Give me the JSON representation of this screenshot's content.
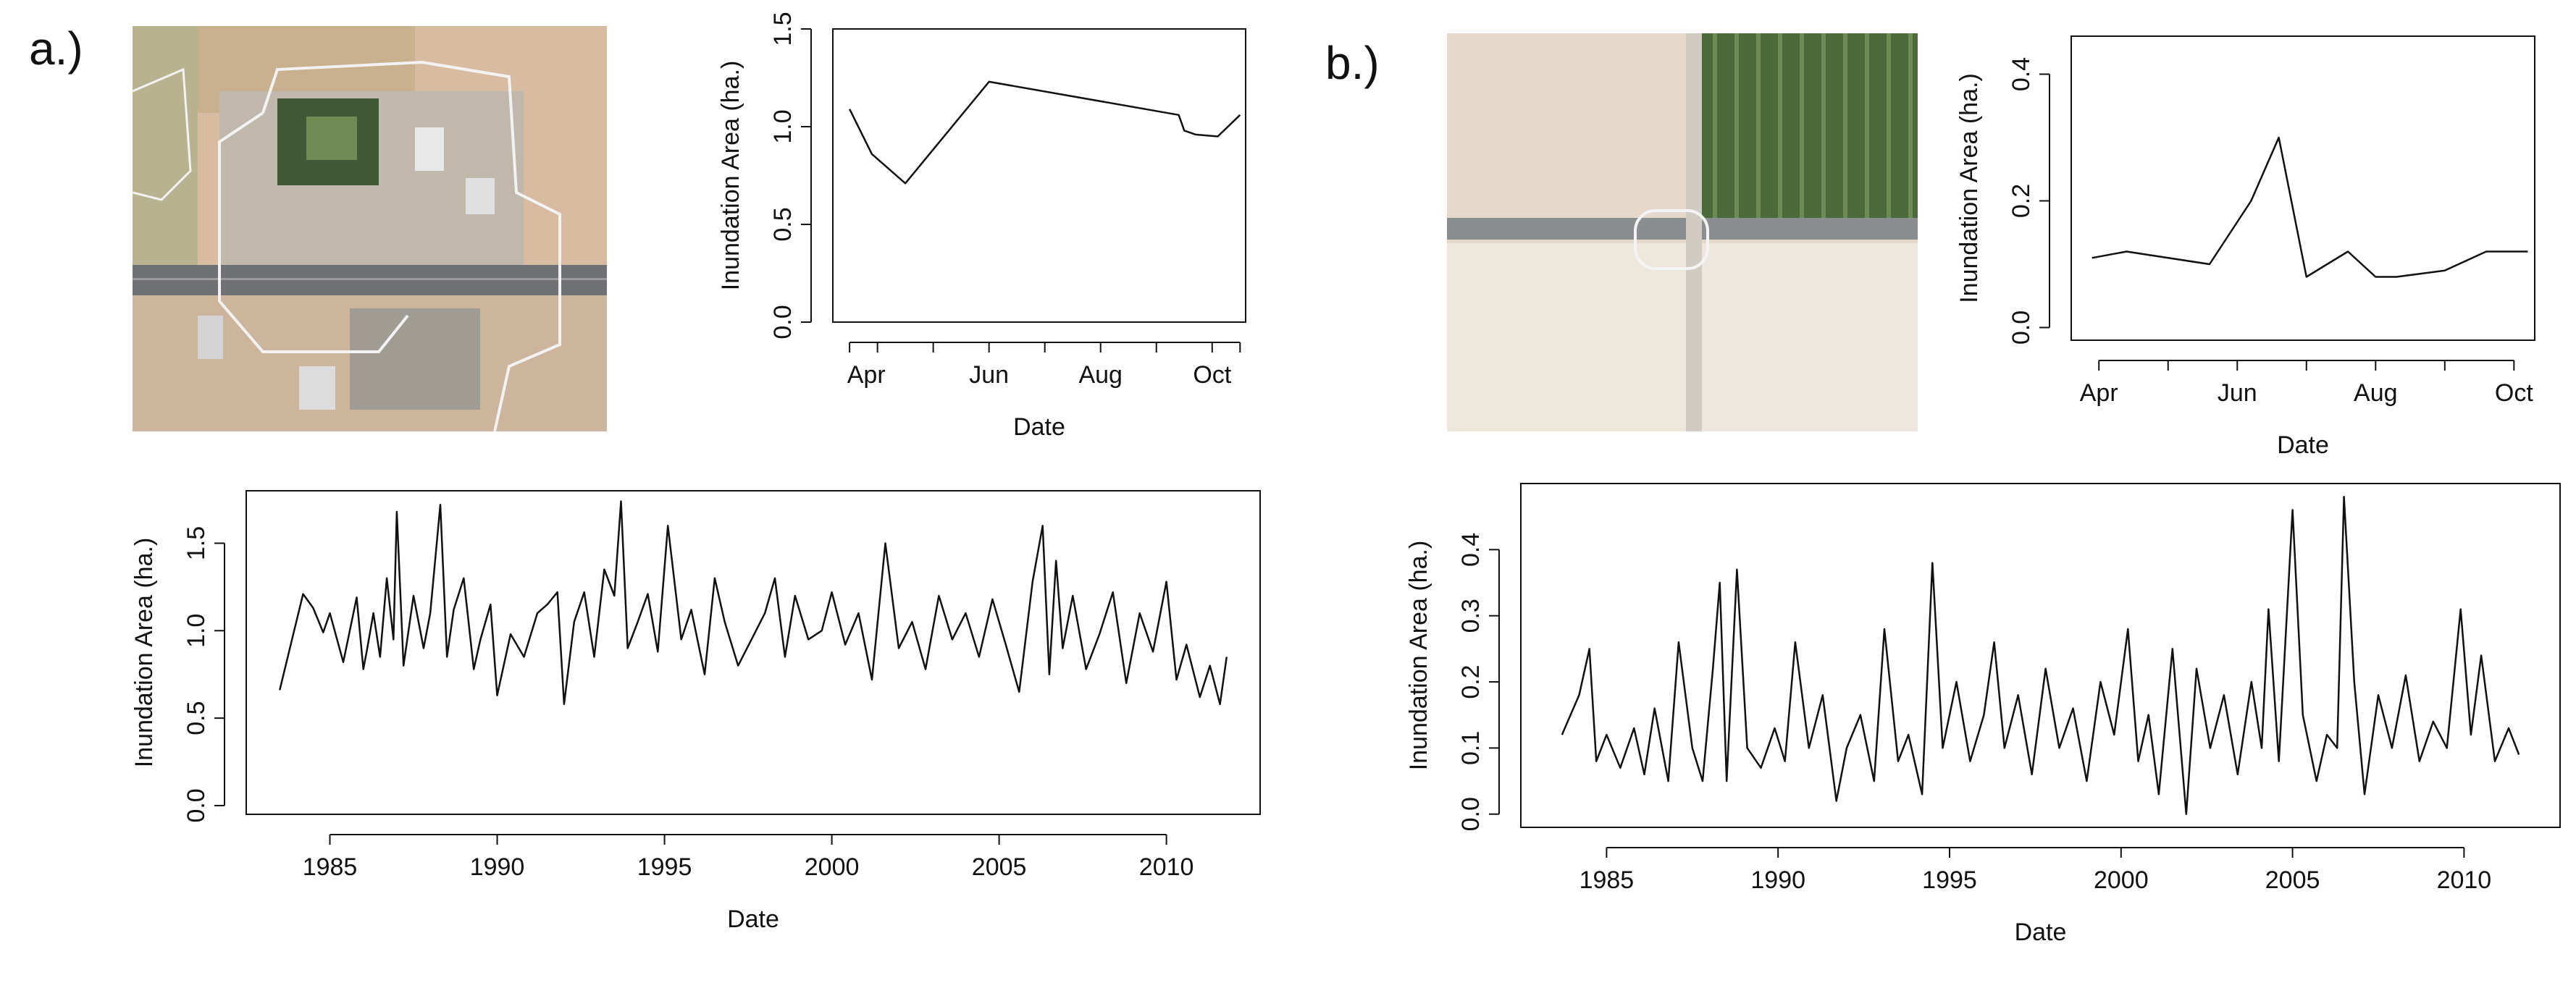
{
  "panels": {
    "a": {
      "label": "a.)"
    },
    "b": {
      "label": "b.)"
    }
  },
  "colors": {
    "line": "#111111",
    "axis": "#111111",
    "field": "#d9bfa5",
    "route": "#f2f2f2"
  },
  "chart_data": [
    {
      "id": "a-seasonal",
      "type": "line",
      "panel": "a.)",
      "title": "",
      "xlabel": "Date",
      "ylabel": "Inundation Area (ha.)",
      "xlim": [
        3.2,
        10.6
      ],
      "ylim": [
        0,
        1.5
      ],
      "x_ticks": [
        3.5,
        4,
        5,
        6,
        7,
        8,
        9,
        10,
        10.5
      ],
      "x_tick_labels": [
        {
          "x": 3.8,
          "label": "Apr"
        },
        {
          "x": 6,
          "label": "Jun"
        },
        {
          "x": 8,
          "label": "Aug"
        },
        {
          "x": 10,
          "label": "Oct"
        }
      ],
      "y_ticks": [
        0.0,
        0.5,
        1.0,
        1.5
      ],
      "y_tick_labels": [
        "0.0",
        "0.5",
        "1.0",
        "1.5"
      ],
      "x": [
        3.5,
        3.9,
        4.5,
        6.0,
        9.4,
        9.5,
        9.7,
        10.1,
        10.5
      ],
      "values": [
        1.09,
        0.86,
        0.71,
        1.23,
        1.06,
        0.98,
        0.96,
        0.95,
        1.06
      ]
    },
    {
      "id": "a-timeseries",
      "type": "line",
      "panel": "a.)",
      "title": "",
      "xlabel": "Date",
      "ylabel": "Inundation Area (ha.)",
      "xlim": [
        1982.5,
        2012.8
      ],
      "ylim": [
        -0.05,
        1.8
      ],
      "x_ticks": [
        1985,
        1990,
        1995,
        2000,
        2005,
        2010
      ],
      "x_tick_labels": [
        "1985",
        "1990",
        "1995",
        "2000",
        "2005",
        "2010"
      ],
      "y_ticks": [
        0.0,
        0.5,
        1.0,
        1.5
      ],
      "y_tick_labels": [
        "0.0",
        "0.5",
        "1.0",
        "1.5"
      ],
      "x": [
        1983.5,
        1984.2,
        1984.5,
        1984.8,
        1985.0,
        1985.4,
        1985.8,
        1986.0,
        1986.1,
        1986.3,
        1986.5,
        1986.7,
        1986.9,
        1987.0,
        1987.2,
        1987.5,
        1987.8,
        1988.0,
        1988.3,
        1988.5,
        1988.7,
        1989.0,
        1989.3,
        1989.5,
        1989.8,
        1990.0,
        1990.4,
        1990.8,
        1991.2,
        1991.5,
        1991.8,
        1992.0,
        1992.3,
        1992.6,
        1992.9,
        1993.2,
        1993.5,
        1993.7,
        1993.9,
        1994.2,
        1994.5,
        1994.8,
        1995.1,
        1995.5,
        1995.8,
        1996.2,
        1996.5,
        1996.8,
        1997.2,
        1997.6,
        1998.0,
        1998.3,
        1998.6,
        1998.9,
        1999.3,
        1999.7,
        2000.0,
        2000.4,
        2000.8,
        2001.2,
        2001.6,
        2002.0,
        2002.4,
        2002.8,
        2003.2,
        2003.6,
        2004.0,
        2004.4,
        2004.8,
        2005.2,
        2005.6,
        2006.0,
        2006.3,
        2006.5,
        2006.7,
        2006.9,
        2007.2,
        2007.6,
        2008.0,
        2008.4,
        2008.8,
        2009.2,
        2009.6,
        2010.0,
        2010.3,
        2010.6,
        2011.0,
        2011.3,
        2011.6,
        2011.8
      ],
      "values": [
        0.66,
        1.21,
        1.13,
        0.99,
        1.1,
        0.82,
        1.19,
        0.78,
        0.88,
        1.1,
        0.85,
        1.3,
        0.95,
        1.68,
        0.8,
        1.2,
        0.9,
        1.1,
        1.72,
        0.85,
        1.12,
        1.3,
        0.78,
        0.95,
        1.15,
        0.63,
        0.98,
        0.85,
        1.1,
        1.15,
        1.22,
        0.58,
        1.05,
        1.22,
        0.85,
        1.35,
        1.2,
        1.74,
        0.9,
        1.05,
        1.21,
        0.88,
        1.6,
        0.95,
        1.12,
        0.75,
        1.3,
        1.05,
        0.8,
        0.95,
        1.1,
        1.3,
        0.85,
        1.2,
        0.95,
        1.0,
        1.22,
        0.92,
        1.1,
        0.72,
        1.5,
        0.9,
        1.05,
        0.78,
        1.2,
        0.95,
        1.1,
        0.85,
        1.18,
        0.92,
        0.65,
        1.28,
        1.6,
        0.75,
        1.4,
        0.9,
        1.2,
        0.78,
        0.98,
        1.22,
        0.7,
        1.1,
        0.88,
        1.28,
        0.72,
        0.92,
        0.62,
        0.8,
        0.58,
        0.85
      ]
    },
    {
      "id": "b-seasonal",
      "type": "line",
      "panel": "b.)",
      "title": "",
      "xlabel": "Date",
      "ylabel": "Inundation Area (ha.)",
      "xlim": [
        3.6,
        10.3
      ],
      "ylim": [
        -0.02,
        0.46
      ],
      "x_ticks": [
        4,
        5,
        6,
        7,
        8,
        9,
        10
      ],
      "x_tick_labels": [
        {
          "x": 4,
          "label": "Apr"
        },
        {
          "x": 6,
          "label": "Jun"
        },
        {
          "x": 8,
          "label": "Aug"
        },
        {
          "x": 10,
          "label": "Oct"
        }
      ],
      "y_ticks": [
        0.0,
        0.2,
        0.4
      ],
      "y_tick_labels": [
        "0.0",
        "0.2",
        "0.4"
      ],
      "x": [
        3.9,
        4.4,
        5.6,
        6.2,
        6.6,
        7.0,
        7.3,
        7.6,
        8.0,
        8.3,
        9.0,
        9.6,
        10.2
      ],
      "values": [
        0.11,
        0.12,
        0.1,
        0.2,
        0.3,
        0.08,
        0.1,
        0.12,
        0.08,
        0.08,
        0.09,
        0.12,
        0.12
      ]
    },
    {
      "id": "b-timeseries",
      "type": "line",
      "panel": "b.)",
      "title": "",
      "xlabel": "Date",
      "ylabel": "Inundation Area (ha.)",
      "xlim": [
        1982.5,
        2012.8
      ],
      "ylim": [
        -0.02,
        0.5
      ],
      "x_ticks": [
        1985,
        1990,
        1995,
        2000,
        2005,
        2010
      ],
      "x_tick_labels": [
        "1985",
        "1990",
        "1995",
        "2000",
        "2005",
        "2010"
      ],
      "y_ticks": [
        0.0,
        0.1,
        0.2,
        0.3,
        0.4
      ],
      "y_tick_labels": [
        "0.0",
        "0.1",
        "0.2",
        "0.3",
        "0.4"
      ],
      "x": [
        1983.7,
        1984.2,
        1984.5,
        1984.7,
        1985.0,
        1985.4,
        1985.8,
        1986.1,
        1986.4,
        1986.8,
        1987.1,
        1987.5,
        1987.8,
        1988.1,
        1988.3,
        1988.5,
        1988.8,
        1989.1,
        1989.5,
        1989.9,
        1990.2,
        1990.5,
        1990.9,
        1991.3,
        1991.7,
        1992.0,
        1992.4,
        1992.8,
        1993.1,
        1993.5,
        1993.8,
        1994.2,
        1994.5,
        1994.8,
        1995.2,
        1995.6,
        1996.0,
        1996.3,
        1996.6,
        1997.0,
        1997.4,
        1997.8,
        1998.2,
        1998.6,
        1999.0,
        1999.4,
        1999.8,
        2000.2,
        2000.5,
        2000.8,
        2001.1,
        2001.5,
        2001.9,
        2002.2,
        2002.6,
        2003.0,
        2003.4,
        2003.8,
        2004.1,
        2004.3,
        2004.6,
        2005.0,
        2005.3,
        2005.7,
        2006.0,
        2006.3,
        2006.5,
        2006.8,
        2007.1,
        2007.5,
        2007.9,
        2008.3,
        2008.7,
        2009.1,
        2009.5,
        2009.9,
        2010.2,
        2010.5,
        2010.9,
        2011.3,
        2011.6
      ],
      "values": [
        0.12,
        0.18,
        0.25,
        0.08,
        0.12,
        0.07,
        0.13,
        0.06,
        0.16,
        0.05,
        0.26,
        0.1,
        0.05,
        0.22,
        0.35,
        0.05,
        0.37,
        0.1,
        0.07,
        0.13,
        0.08,
        0.26,
        0.1,
        0.18,
        0.02,
        0.1,
        0.15,
        0.05,
        0.28,
        0.08,
        0.12,
        0.03,
        0.38,
        0.1,
        0.2,
        0.08,
        0.15,
        0.26,
        0.1,
        0.18,
        0.06,
        0.22,
        0.1,
        0.16,
        0.05,
        0.2,
        0.12,
        0.28,
        0.08,
        0.15,
        0.03,
        0.25,
        0.0,
        0.22,
        0.1,
        0.18,
        0.06,
        0.2,
        0.1,
        0.31,
        0.08,
        0.46,
        0.15,
        0.05,
        0.12,
        0.1,
        0.48,
        0.2,
        0.03,
        0.18,
        0.1,
        0.21,
        0.08,
        0.14,
        0.1,
        0.31,
        0.12,
        0.24,
        0.08,
        0.13,
        0.09
      ]
    }
  ]
}
